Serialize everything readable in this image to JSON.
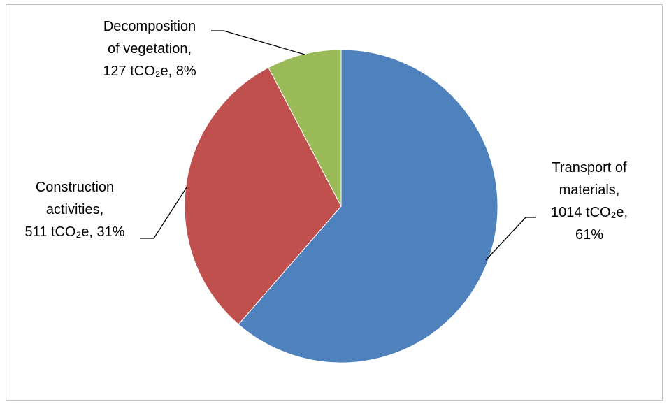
{
  "chart_data": {
    "type": "pie",
    "title": "",
    "unit": "tCO₂e",
    "start_angle_deg": 0,
    "direction": "clockwise",
    "legend": "none",
    "slices": [
      {
        "label_lines": [
          "Transport of",
          "materials,",
          "1014 tCO₂e,",
          "61%"
        ],
        "category": "Transport of materials",
        "value": 1014,
        "percent": 61,
        "color": "#4f81bd"
      },
      {
        "label_lines": [
          "Construction",
          "activities,",
          "511 tCO₂e, 31%"
        ],
        "category": "Construction activities",
        "value": 511,
        "percent": 31,
        "color": "#c0504d"
      },
      {
        "label_lines": [
          "Decomposition",
          "of vegetation,",
          "127 tCO₂e, 8%"
        ],
        "category": "Decomposition of vegetation",
        "value": 127,
        "percent": 8,
        "color": "#9bbb59"
      }
    ]
  }
}
